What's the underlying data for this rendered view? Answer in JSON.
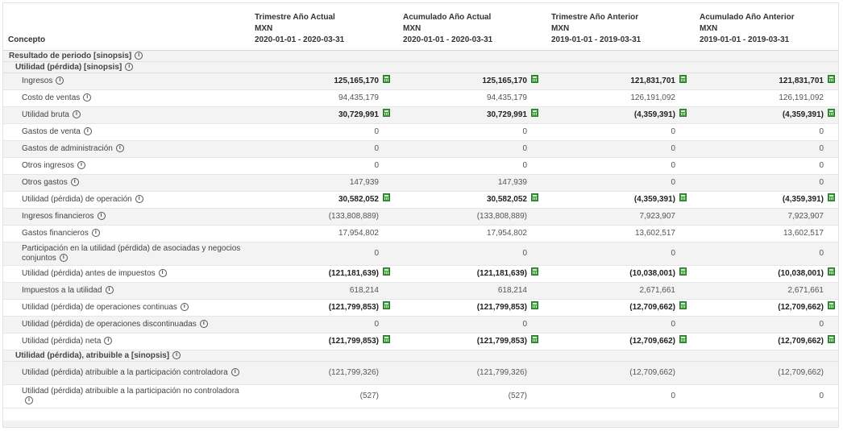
{
  "header": {
    "concept_label": "Concepto",
    "columns": [
      {
        "title": "Trimestre Año Actual",
        "currency": "MXN",
        "period": "2020-01-01 - 2020-03-31"
      },
      {
        "title": "Acumulado Año Actual",
        "currency": "MXN",
        "period": "2020-01-01 - 2020-03-31"
      },
      {
        "title": "Trimestre Año Anterior",
        "currency": "MXN",
        "period": "2019-01-01 - 2019-03-31"
      },
      {
        "title": "Acumulado Año Anterior",
        "currency": "MXN",
        "period": "2019-01-01 - 2019-03-31"
      }
    ]
  },
  "info_glyph": "i",
  "icons": {
    "info": "info-icon",
    "calculator": "calculator-icon"
  },
  "sections": {
    "s1": "Resultado de periodo [sinopsis]",
    "s2": "Utilidad (pérdida) [sinopsis]",
    "s3": "Utilidad (pérdida), atribuible a [sinopsis]"
  },
  "rows": [
    {
      "label": "Ingresos",
      "values": [
        "125,165,170",
        "125,165,170",
        "121,831,701",
        "121,831,701"
      ],
      "bold": true
    },
    {
      "label": "Costo de ventas",
      "values": [
        "94,435,179",
        "94,435,179",
        "126,191,092",
        "126,191,092"
      ],
      "bold": false
    },
    {
      "label": "Utilidad bruta",
      "values": [
        "30,729,991",
        "30,729,991",
        "(4,359,391)",
        "(4,359,391)"
      ],
      "bold": true
    },
    {
      "label": "Gastos de venta",
      "values": [
        "0",
        "0",
        "0",
        "0"
      ],
      "bold": false
    },
    {
      "label": "Gastos de administración",
      "values": [
        "0",
        "0",
        "0",
        "0"
      ],
      "bold": false
    },
    {
      "label": "Otros ingresos",
      "values": [
        "0",
        "0",
        "0",
        "0"
      ],
      "bold": false
    },
    {
      "label": "Otros gastos",
      "values": [
        "147,939",
        "147,939",
        "0",
        "0"
      ],
      "bold": false
    },
    {
      "label": "Utilidad (pérdida) de operación",
      "values": [
        "30,582,052",
        "30,582,052",
        "(4,359,391)",
        "(4,359,391)"
      ],
      "bold": true
    },
    {
      "label": "Ingresos financieros",
      "values": [
        "(133,808,889)",
        "(133,808,889)",
        "7,923,907",
        "7,923,907"
      ],
      "bold": false
    },
    {
      "label": "Gastos financieros",
      "values": [
        "17,954,802",
        "17,954,802",
        "13,602,517",
        "13,602,517"
      ],
      "bold": false
    },
    {
      "label": "Participación en la utilidad (pérdida) de asociadas y negocios conjuntos",
      "values": [
        "0",
        "0",
        "0",
        "0"
      ],
      "bold": false
    },
    {
      "label": "Utilidad (pérdida) antes de impuestos",
      "values": [
        "(121,181,639)",
        "(121,181,639)",
        "(10,038,001)",
        "(10,038,001)"
      ],
      "bold": true
    },
    {
      "label": "Impuestos a la utilidad",
      "values": [
        "618,214",
        "618,214",
        "2,671,661",
        "2,671,661"
      ],
      "bold": false
    },
    {
      "label": "Utilidad (pérdida) de operaciones continuas",
      "values": [
        "(121,799,853)",
        "(121,799,853)",
        "(12,709,662)",
        "(12,709,662)"
      ],
      "bold": true
    },
    {
      "label": "Utilidad (pérdida) de operaciones discontinuadas",
      "values": [
        "0",
        "0",
        "0",
        "0"
      ],
      "bold": false
    },
    {
      "label": "Utilidad (pérdida) neta",
      "values": [
        "(121,799,853)",
        "(121,799,853)",
        "(12,709,662)",
        "(12,709,662)"
      ],
      "bold": true
    },
    {
      "label": "Utilidad (pérdida) atribuible a la participación controladora",
      "values": [
        "(121,799,326)",
        "(121,799,326)",
        "(12,709,662)",
        "(12,709,662)"
      ],
      "bold": false
    },
    {
      "label": "Utilidad (pérdida) atribuible a la participación no controladora",
      "values": [
        "(527)",
        "(527)",
        "0",
        "0"
      ],
      "bold": false
    }
  ]
}
